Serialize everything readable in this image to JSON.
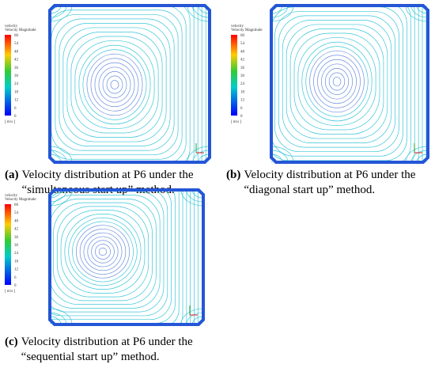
{
  "panels": [
    {
      "legend": {
        "title": "velocity",
        "subtitle": "Velocity Magnitude",
        "ticks": [
          60,
          54,
          48,
          42,
          36,
          30,
          24,
          18,
          12,
          6,
          0
        ],
        "unit": "[ m/s ]"
      },
      "caption": {
        "label": "(a)",
        "lines": [
          "Velocity distribution at P6 under the",
          "“simultaneous start up” method."
        ]
      }
    },
    {
      "legend": {
        "title": "velocity",
        "subtitle": "Velocity Magnitude",
        "ticks": [
          60,
          54,
          48,
          42,
          36,
          30,
          24,
          18,
          12,
          6,
          0
        ],
        "unit": "[ m/s ]"
      },
      "caption": {
        "label": "(b)",
        "lines": [
          "Velocity distribution at P6 under the",
          "“diagonal start up” method."
        ]
      }
    },
    {
      "legend": {
        "title": "velocity",
        "subtitle": "Velocity Magnitude",
        "ticks": [
          60,
          54,
          48,
          42,
          36,
          30,
          24,
          18,
          12,
          6,
          0
        ],
        "unit": "[ m/s ]"
      },
      "caption": {
        "label": "(c)",
        "lines": [
          "Velocity distribution at P6 under the",
          "“sequential start up” method."
        ]
      }
    }
  ]
}
